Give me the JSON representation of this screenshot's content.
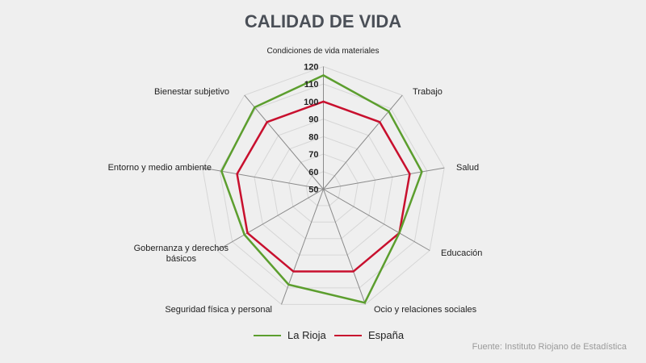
{
  "chart_data": {
    "type": "radar",
    "title": "CALIDAD DE VIDA",
    "categories": [
      "Condiciones de vida materiales",
      "Trabajo",
      "Salud",
      "Educación",
      "Ocio y relaciones sociales",
      "Seguridad física y personal",
      "Gobernanza y derechos básicos",
      "Entorno y medio ambiente",
      "Bienestar subjetivo"
    ],
    "series": [
      {
        "name": "La Rioja",
        "color": "#5c9e2e",
        "values": [
          115,
          108,
          107,
          100,
          119,
          108,
          102,
          109,
          111
        ]
      },
      {
        "name": "España",
        "color": "#c8102e",
        "values": [
          100,
          100,
          100,
          100,
          100,
          100,
          100,
          100,
          100
        ]
      }
    ],
    "rlim": [
      50,
      120
    ],
    "ticks": [
      50,
      60,
      70,
      80,
      90,
      100,
      110,
      120
    ],
    "legend": "bottom",
    "grid": true
  },
  "source": "Fuente: Instituto Riojano de Estadística"
}
